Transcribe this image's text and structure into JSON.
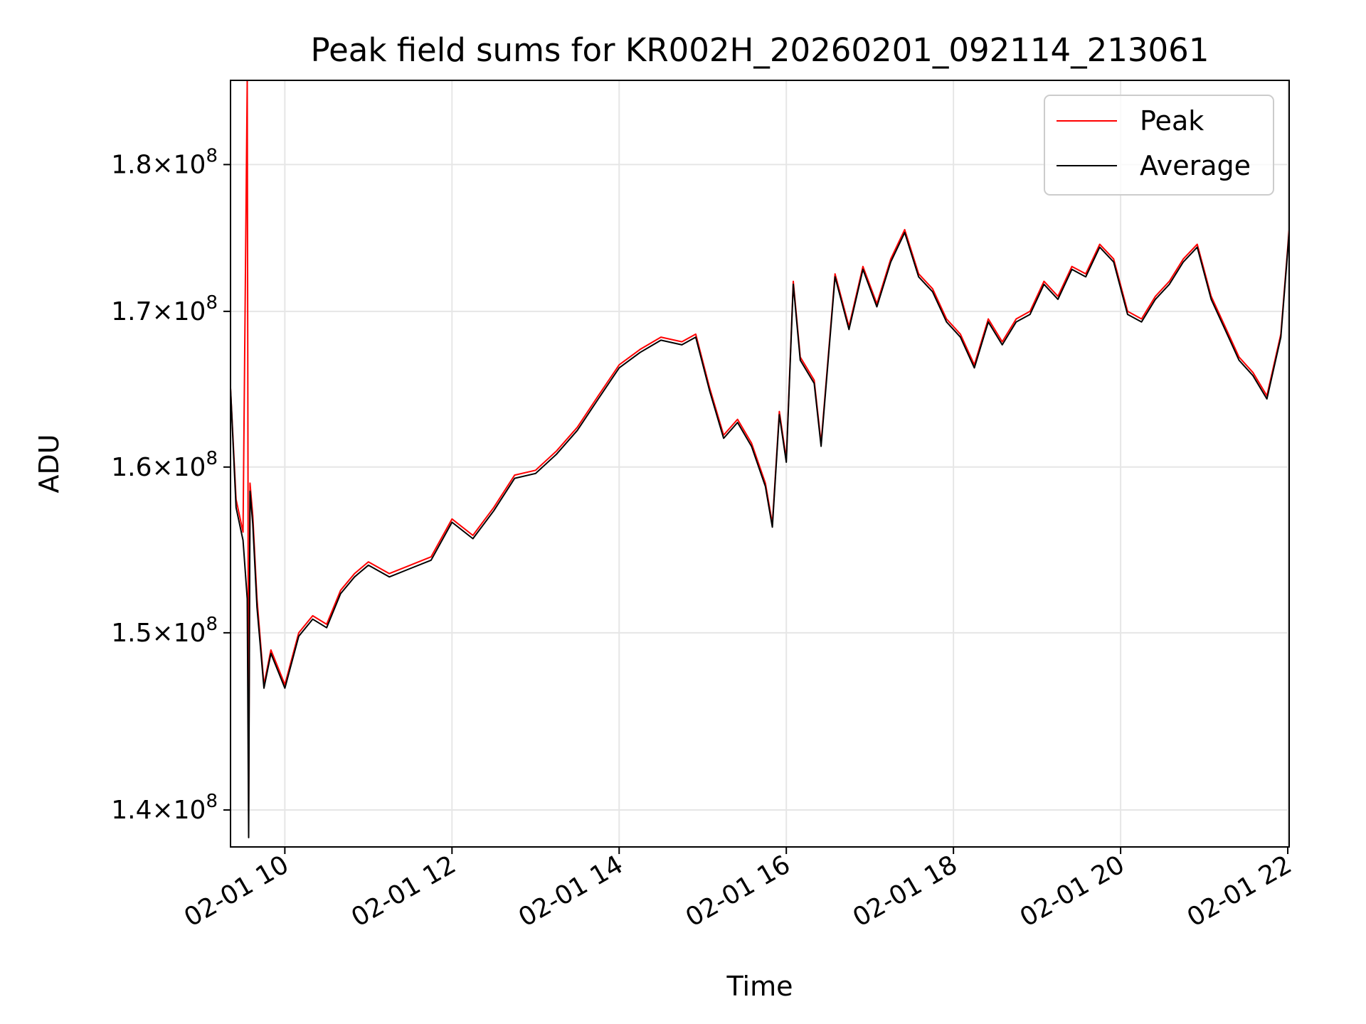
{
  "chart_data": {
    "type": "line",
    "title": "Peak field sums for KR002H_20260201_092114_213061",
    "xlabel": "Time",
    "ylabel": "ADU",
    "yscale": "log",
    "grid": true,
    "legend_position": "top-right",
    "xlim": [
      "2026-02-01 09:21",
      "2026-02-01 22:01"
    ],
    "ylim": [
      138000000,
      186000000
    ],
    "x_ticks": [
      {
        "value": "2026-02-01 10:00",
        "label": "02-01 10"
      },
      {
        "value": "2026-02-01 12:00",
        "label": "02-01 12"
      },
      {
        "value": "2026-02-01 14:00",
        "label": "02-01 14"
      },
      {
        "value": "2026-02-01 16:00",
        "label": "02-01 16"
      },
      {
        "value": "2026-02-01 18:00",
        "label": "02-01 18"
      },
      {
        "value": "2026-02-01 20:00",
        "label": "02-01 20"
      },
      {
        "value": "2026-02-01 22:00",
        "label": "02-01 22"
      }
    ],
    "y_ticks": [
      {
        "value": 140000000,
        "mantissa": "1.4",
        "base": "10",
        "exp": "8"
      },
      {
        "value": 150000000,
        "mantissa": "1.5",
        "base": "10",
        "exp": "8"
      },
      {
        "value": 160000000,
        "mantissa": "1.6",
        "base": "10",
        "exp": "8"
      },
      {
        "value": 170000000,
        "mantissa": "1.7",
        "base": "10",
        "exp": "8"
      },
      {
        "value": 180000000,
        "mantissa": "1.8",
        "base": "10",
        "exp": "8"
      }
    ],
    "x": [
      "2026-02-01 09:21",
      "2026-02-01 09:25",
      "2026-02-01 09:30",
      "2026-02-01 09:33",
      "2026-02-01 09:34",
      "2026-02-01 09:35",
      "2026-02-01 09:37",
      "2026-02-01 09:40",
      "2026-02-01 09:45",
      "2026-02-01 09:50",
      "2026-02-01 09:55",
      "2026-02-01 10:00",
      "2026-02-01 10:10",
      "2026-02-01 10:20",
      "2026-02-01 10:30",
      "2026-02-01 10:40",
      "2026-02-01 10:50",
      "2026-02-01 11:00",
      "2026-02-01 11:15",
      "2026-02-01 11:30",
      "2026-02-01 11:45",
      "2026-02-01 12:00",
      "2026-02-01 12:15",
      "2026-02-01 12:30",
      "2026-02-01 12:45",
      "2026-02-01 13:00",
      "2026-02-01 13:15",
      "2026-02-01 13:30",
      "2026-02-01 13:45",
      "2026-02-01 14:00",
      "2026-02-01 14:15",
      "2026-02-01 14:30",
      "2026-02-01 14:45",
      "2026-02-01 14:55",
      "2026-02-01 15:05",
      "2026-02-01 15:15",
      "2026-02-01 15:25",
      "2026-02-01 15:35",
      "2026-02-01 15:45",
      "2026-02-01 15:50",
      "2026-02-01 15:55",
      "2026-02-01 16:00",
      "2026-02-01 16:05",
      "2026-02-01 16:10",
      "2026-02-01 16:20",
      "2026-02-01 16:25",
      "2026-02-01 16:35",
      "2026-02-01 16:45",
      "2026-02-01 16:55",
      "2026-02-01 17:05",
      "2026-02-01 17:15",
      "2026-02-01 17:25",
      "2026-02-01 17:35",
      "2026-02-01 17:45",
      "2026-02-01 17:55",
      "2026-02-01 18:05",
      "2026-02-01 18:15",
      "2026-02-01 18:25",
      "2026-02-01 18:35",
      "2026-02-01 18:45",
      "2026-02-01 18:55",
      "2026-02-01 19:05",
      "2026-02-01 19:15",
      "2026-02-01 19:25",
      "2026-02-01 19:35",
      "2026-02-01 19:45",
      "2026-02-01 19:55",
      "2026-02-01 20:05",
      "2026-02-01 20:15",
      "2026-02-01 20:25",
      "2026-02-01 20:35",
      "2026-02-01 20:45",
      "2026-02-01 20:55",
      "2026-02-01 21:05",
      "2026-02-01 21:15",
      "2026-02-01 21:25",
      "2026-02-01 21:35",
      "2026-02-01 21:45",
      "2026-02-01 21:55",
      "2026-02-01 22:01"
    ],
    "series": [
      {
        "name": "Peak",
        "color": "#ff0000",
        "values": [
          165000000,
          158000000,
          156000000,
          186000000,
          140000000,
          159000000,
          157000000,
          152000000,
          147000000,
          149000000,
          148000000,
          147000000,
          150000000,
          151000000,
          150500000,
          152500000,
          153500000,
          154200000,
          153500000,
          154000000,
          154500000,
          156800000,
          155800000,
          157500000,
          159500000,
          159800000,
          161000000,
          162500000,
          164500000,
          166500000,
          167500000,
          168300000,
          168000000,
          168500000,
          165000000,
          162000000,
          163000000,
          161500000,
          159000000,
          156500000,
          163500000,
          160500000,
          172000000,
          167000000,
          165500000,
          161500000,
          172500000,
          169000000,
          173000000,
          170500000,
          173500000,
          175500000,
          172500000,
          171500000,
          169500000,
          168500000,
          166500000,
          169500000,
          168000000,
          169500000,
          170000000,
          172000000,
          171000000,
          173000000,
          172500000,
          174500000,
          173500000,
          170000000,
          169500000,
          171000000,
          172000000,
          173500000,
          174500000,
          171000000,
          169000000,
          167000000,
          166000000,
          164500000,
          168500000,
          175500000
        ]
      },
      {
        "name": "Average",
        "color": "#000000",
        "values": [
          165000000,
          157500000,
          155500000,
          152000000,
          138500000,
          158500000,
          156500000,
          151500000,
          146800000,
          148800000,
          147800000,
          146800000,
          149800000,
          150800000,
          150300000,
          152300000,
          153300000,
          154000000,
          153300000,
          153800000,
          154300000,
          156600000,
          155600000,
          157300000,
          159300000,
          159600000,
          160800000,
          162300000,
          164300000,
          166300000,
          167300000,
          168100000,
          167800000,
          168300000,
          164800000,
          161800000,
          162800000,
          161300000,
          158800000,
          156300000,
          163300000,
          160300000,
          171800000,
          166800000,
          165300000,
          161300000,
          172300000,
          168800000,
          172800000,
          170300000,
          173300000,
          175300000,
          172300000,
          171300000,
          169300000,
          168300000,
          166300000,
          169300000,
          167800000,
          169300000,
          169800000,
          171800000,
          170800000,
          172800000,
          172300000,
          174300000,
          173300000,
          169800000,
          169300000,
          170800000,
          171800000,
          173300000,
          174300000,
          170800000,
          168800000,
          166800000,
          165800000,
          164300000,
          168300000,
          175300000
        ]
      }
    ]
  }
}
